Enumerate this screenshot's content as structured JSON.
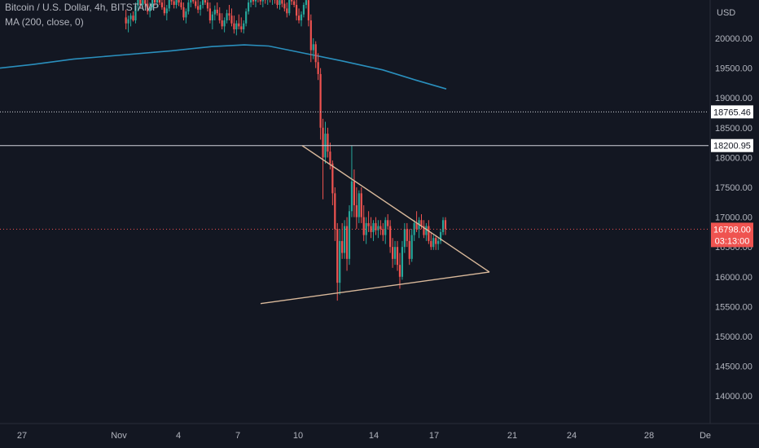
{
  "legend": {
    "symbol": "Bitcoin / U.S. Dollar, 4h, BITSTAMP",
    "indicator": "MA (200, close, 0)"
  },
  "currency": "USD",
  "colors": {
    "background": "#131722",
    "grid": "#1f2330",
    "up": "#26a69a",
    "down": "#ef5350",
    "ma": "#2a8fbd",
    "trendline": "#d9b99b",
    "level_line": "#d1d4dc"
  },
  "chart_data": {
    "type": "candlestick",
    "title": "Bitcoin / U.S. Dollar, 4h, BITSTAMP",
    "ylim": [
      13700,
      20700
    ],
    "y_ticks": [
      "20000.00",
      "19500.00",
      "19000.00",
      "18500.00",
      "18000.00",
      "17500.00",
      "17000.00",
      "16500.00",
      "16000.00",
      "15500.00",
      "15000.00",
      "14500.00",
      "14000.00"
    ],
    "x_ticks": [
      "27",
      "Nov",
      "4",
      "7",
      "10",
      "14",
      "17",
      "21",
      "24",
      "28",
      "De"
    ],
    "grid": false,
    "price_labels": {
      "dotted_level": "18765.46",
      "solid_level": "18200.95",
      "last_price": "16798.00",
      "countdown": "03:13:00"
    },
    "levels": {
      "dotted": 18765.46,
      "solid": 18200.95,
      "last": 16798.0
    },
    "moving_average": {
      "name": "MA (200, close, 0)",
      "points": [
        [
          0,
          19500
        ],
        [
          40,
          19560
        ],
        [
          90,
          19650
        ],
        [
          150,
          19720
        ],
        [
          210,
          19790
        ],
        [
          260,
          19860
        ],
        [
          300,
          19890
        ],
        [
          330,
          19870
        ],
        [
          370,
          19760
        ],
        [
          420,
          19620
        ],
        [
          470,
          19470
        ],
        [
          510,
          19300
        ],
        [
          548,
          19150
        ]
      ]
    },
    "triangle": {
      "upper": [
        [
          371,
          18200
        ],
        [
          601,
          16080
        ]
      ],
      "lower": [
        [
          320,
          15550
        ],
        [
          601,
          16080
        ]
      ]
    },
    "candles": [
      {
        "o": 20350,
        "h": 20480,
        "l": 20150,
        "c": 20250
      },
      {
        "o": 20250,
        "h": 20380,
        "l": 20100,
        "c": 20320
      },
      {
        "o": 20320,
        "h": 20420,
        "l": 20200,
        "c": 20380
      },
      {
        "o": 20380,
        "h": 20450,
        "l": 20280,
        "c": 20300
      },
      {
        "o": 20300,
        "h": 20600,
        "l": 20250,
        "c": 20550
      },
      {
        "o": 20550,
        "h": 20700,
        "l": 20450,
        "c": 20650
      },
      {
        "o": 20650,
        "h": 20700,
        "l": 20500,
        "c": 20560
      },
      {
        "o": 20560,
        "h": 20700,
        "l": 20480,
        "c": 20640
      },
      {
        "o": 20640,
        "h": 20700,
        "l": 20520,
        "c": 20580
      },
      {
        "o": 20580,
        "h": 20700,
        "l": 20400,
        "c": 20450
      },
      {
        "o": 20450,
        "h": 20600,
        "l": 20350,
        "c": 20520
      },
      {
        "o": 20520,
        "h": 20700,
        "l": 20480,
        "c": 20660
      },
      {
        "o": 20660,
        "h": 20700,
        "l": 20550,
        "c": 20600
      },
      {
        "o": 20600,
        "h": 20700,
        "l": 20520,
        "c": 20680
      },
      {
        "o": 20680,
        "h": 20700,
        "l": 20560,
        "c": 20600
      },
      {
        "o": 20600,
        "h": 20700,
        "l": 20480,
        "c": 20520
      },
      {
        "o": 20520,
        "h": 20650,
        "l": 20380,
        "c": 20420
      },
      {
        "o": 20420,
        "h": 20560,
        "l": 20300,
        "c": 20500
      },
      {
        "o": 20500,
        "h": 20700,
        "l": 20450,
        "c": 20660
      },
      {
        "o": 20660,
        "h": 20700,
        "l": 20560,
        "c": 20620
      },
      {
        "o": 20620,
        "h": 20700,
        "l": 20500,
        "c": 20560
      },
      {
        "o": 20560,
        "h": 20700,
        "l": 20500,
        "c": 20650
      },
      {
        "o": 20650,
        "h": 20700,
        "l": 20540,
        "c": 20600
      },
      {
        "o": 20600,
        "h": 20700,
        "l": 20480,
        "c": 20520
      },
      {
        "o": 20520,
        "h": 20600,
        "l": 20300,
        "c": 20350
      },
      {
        "o": 20350,
        "h": 20500,
        "l": 20250,
        "c": 20450
      },
      {
        "o": 20450,
        "h": 20650,
        "l": 20400,
        "c": 20600
      },
      {
        "o": 20600,
        "h": 20700,
        "l": 20520,
        "c": 20660
      },
      {
        "o": 20660,
        "h": 20700,
        "l": 20580,
        "c": 20620
      },
      {
        "o": 20620,
        "h": 20700,
        "l": 20500,
        "c": 20540
      },
      {
        "o": 20540,
        "h": 20650,
        "l": 20420,
        "c": 20480
      },
      {
        "o": 20480,
        "h": 20620,
        "l": 20380,
        "c": 20560
      },
      {
        "o": 20560,
        "h": 20700,
        "l": 20500,
        "c": 20640
      },
      {
        "o": 20640,
        "h": 20700,
        "l": 20560,
        "c": 20600
      },
      {
        "o": 20600,
        "h": 20700,
        "l": 20450,
        "c": 20500
      },
      {
        "o": 20500,
        "h": 20600,
        "l": 20250,
        "c": 20300
      },
      {
        "o": 20300,
        "h": 20450,
        "l": 20150,
        "c": 20400
      },
      {
        "o": 20400,
        "h": 20550,
        "l": 20300,
        "c": 20480
      },
      {
        "o": 20480,
        "h": 20600,
        "l": 20380,
        "c": 20420
      },
      {
        "o": 20420,
        "h": 20520,
        "l": 20250,
        "c": 20300
      },
      {
        "o": 20300,
        "h": 20420,
        "l": 20150,
        "c": 20200
      },
      {
        "o": 20200,
        "h": 20350,
        "l": 20100,
        "c": 20300
      },
      {
        "o": 20300,
        "h": 20480,
        "l": 20250,
        "c": 20420
      },
      {
        "o": 20420,
        "h": 20560,
        "l": 20300,
        "c": 20380
      },
      {
        "o": 20380,
        "h": 20500,
        "l": 20200,
        "c": 20250
      },
      {
        "o": 20250,
        "h": 20380,
        "l": 20080,
        "c": 20150
      },
      {
        "o": 20150,
        "h": 20300,
        "l": 20050,
        "c": 20250
      },
      {
        "o": 20250,
        "h": 20400,
        "l": 20150,
        "c": 20200
      },
      {
        "o": 20200,
        "h": 20350,
        "l": 20100,
        "c": 20150
      },
      {
        "o": 20150,
        "h": 20300,
        "l": 20080,
        "c": 20250
      },
      {
        "o": 20250,
        "h": 20500,
        "l": 20200,
        "c": 20450
      },
      {
        "o": 20450,
        "h": 20650,
        "l": 20400,
        "c": 20600
      },
      {
        "o": 20600,
        "h": 20700,
        "l": 20520,
        "c": 20660
      },
      {
        "o": 20660,
        "h": 20700,
        "l": 20560,
        "c": 20620
      },
      {
        "o": 20620,
        "h": 20700,
        "l": 20520,
        "c": 20680
      },
      {
        "o": 20680,
        "h": 20700,
        "l": 20600,
        "c": 20650
      },
      {
        "o": 20650,
        "h": 20700,
        "l": 20560,
        "c": 20620
      },
      {
        "o": 20620,
        "h": 20700,
        "l": 20520,
        "c": 20660
      },
      {
        "o": 20660,
        "h": 20700,
        "l": 20580,
        "c": 20640
      },
      {
        "o": 20640,
        "h": 20700,
        "l": 20560,
        "c": 20680
      },
      {
        "o": 20680,
        "h": 20700,
        "l": 20600,
        "c": 20650
      },
      {
        "o": 20650,
        "h": 20700,
        "l": 20560,
        "c": 20680
      },
      {
        "o": 20680,
        "h": 20700,
        "l": 20580,
        "c": 20640
      },
      {
        "o": 20640,
        "h": 20700,
        "l": 20500,
        "c": 20560
      },
      {
        "o": 20560,
        "h": 20700,
        "l": 20480,
        "c": 20640
      },
      {
        "o": 20640,
        "h": 20700,
        "l": 20520,
        "c": 20580
      },
      {
        "o": 20580,
        "h": 20700,
        "l": 20450,
        "c": 20500
      },
      {
        "o": 20500,
        "h": 20600,
        "l": 20350,
        "c": 20420
      },
      {
        "o": 20420,
        "h": 20700,
        "l": 20380,
        "c": 20660
      },
      {
        "o": 20660,
        "h": 20700,
        "l": 20560,
        "c": 20620
      },
      {
        "o": 20620,
        "h": 20700,
        "l": 20520,
        "c": 20560
      },
      {
        "o": 20560,
        "h": 20700,
        "l": 20300,
        "c": 20380
      },
      {
        "o": 20380,
        "h": 20500,
        "l": 20250,
        "c": 20300
      },
      {
        "o": 20300,
        "h": 20450,
        "l": 20200,
        "c": 20400
      },
      {
        "o": 20400,
        "h": 20600,
        "l": 20350,
        "c": 20560
      },
      {
        "o": 20560,
        "h": 20700,
        "l": 20500,
        "c": 20640
      },
      {
        "o": 20640,
        "h": 20700,
        "l": 20200,
        "c": 20300
      },
      {
        "o": 20300,
        "h": 20400,
        "l": 19600,
        "c": 19800
      },
      {
        "o": 19800,
        "h": 20000,
        "l": 19650,
        "c": 19900
      },
      {
        "o": 19900,
        "h": 19950,
        "l": 19500,
        "c": 19600
      },
      {
        "o": 19600,
        "h": 19750,
        "l": 19300,
        "c": 19400
      },
      {
        "o": 19400,
        "h": 19500,
        "l": 18300,
        "c": 18500
      },
      {
        "o": 18500,
        "h": 18650,
        "l": 17300,
        "c": 18000
      },
      {
        "o": 18000,
        "h": 18600,
        "l": 17900,
        "c": 18400
      },
      {
        "o": 18400,
        "h": 18500,
        "l": 18000,
        "c": 18100
      },
      {
        "o": 18100,
        "h": 18250,
        "l": 17800,
        "c": 17900
      },
      {
        "o": 17900,
        "h": 17950,
        "l": 17200,
        "c": 17400
      },
      {
        "o": 17400,
        "h": 17500,
        "l": 16600,
        "c": 16800
      },
      {
        "o": 16800,
        "h": 16900,
        "l": 15600,
        "c": 15900
      },
      {
        "o": 15900,
        "h": 16800,
        "l": 15700,
        "c": 16600
      },
      {
        "o": 16600,
        "h": 16900,
        "l": 16300,
        "c": 16400
      },
      {
        "o": 16400,
        "h": 16950,
        "l": 16300,
        "c": 16850
      },
      {
        "o": 16850,
        "h": 17000,
        "l": 16100,
        "c": 16300
      },
      {
        "o": 16300,
        "h": 17200,
        "l": 16200,
        "c": 17100
      },
      {
        "o": 17100,
        "h": 18200,
        "l": 17000,
        "c": 17600
      },
      {
        "o": 17600,
        "h": 17800,
        "l": 17000,
        "c": 17200
      },
      {
        "o": 17200,
        "h": 17500,
        "l": 16800,
        "c": 17000
      },
      {
        "o": 17000,
        "h": 17450,
        "l": 16900,
        "c": 17400
      },
      {
        "o": 17400,
        "h": 17500,
        "l": 16900,
        "c": 17000
      },
      {
        "o": 17000,
        "h": 17200,
        "l": 16600,
        "c": 16700
      },
      {
        "o": 16700,
        "h": 17000,
        "l": 16550,
        "c": 16900
      },
      {
        "o": 16900,
        "h": 17100,
        "l": 16750,
        "c": 16850
      },
      {
        "o": 16850,
        "h": 17000,
        "l": 16650,
        "c": 16750
      },
      {
        "o": 16750,
        "h": 16950,
        "l": 16600,
        "c": 16900
      },
      {
        "o": 16900,
        "h": 17000,
        "l": 16700,
        "c": 16780
      },
      {
        "o": 16780,
        "h": 16950,
        "l": 16650,
        "c": 16850
      },
      {
        "o": 16850,
        "h": 16950,
        "l": 16700,
        "c": 16800
      },
      {
        "o": 16800,
        "h": 16900,
        "l": 16600,
        "c": 16700
      },
      {
        "o": 16700,
        "h": 17000,
        "l": 16550,
        "c": 16950
      },
      {
        "o": 16950,
        "h": 17050,
        "l": 16800,
        "c": 16850
      },
      {
        "o": 16850,
        "h": 16950,
        "l": 16400,
        "c": 16500
      },
      {
        "o": 16500,
        "h": 16650,
        "l": 16150,
        "c": 16300
      },
      {
        "o": 16300,
        "h": 16600,
        "l": 16200,
        "c": 16500
      },
      {
        "o": 16500,
        "h": 16600,
        "l": 16100,
        "c": 16200
      },
      {
        "o": 16200,
        "h": 16400,
        "l": 15800,
        "c": 16000
      },
      {
        "o": 16000,
        "h": 16600,
        "l": 15950,
        "c": 16500
      },
      {
        "o": 16500,
        "h": 16900,
        "l": 16400,
        "c": 16800
      },
      {
        "o": 16800,
        "h": 16900,
        "l": 16500,
        "c": 16600
      },
      {
        "o": 16600,
        "h": 16800,
        "l": 16200,
        "c": 16300
      },
      {
        "o": 16300,
        "h": 16800,
        "l": 16250,
        "c": 16700
      },
      {
        "o": 16700,
        "h": 16950,
        "l": 16600,
        "c": 16900
      },
      {
        "o": 16900,
        "h": 17100,
        "l": 16750,
        "c": 16800
      },
      {
        "o": 16800,
        "h": 17000,
        "l": 16650,
        "c": 16950
      },
      {
        "o": 16950,
        "h": 17050,
        "l": 16800,
        "c": 16850
      },
      {
        "o": 16850,
        "h": 16950,
        "l": 16650,
        "c": 16700
      },
      {
        "o": 16700,
        "h": 16900,
        "l": 16600,
        "c": 16850
      },
      {
        "o": 16850,
        "h": 16950,
        "l": 16550,
        "c": 16600
      },
      {
        "o": 16600,
        "h": 16750,
        "l": 16450,
        "c": 16500
      },
      {
        "o": 16500,
        "h": 16700,
        "l": 16450,
        "c": 16650
      },
      {
        "o": 16650,
        "h": 16700,
        "l": 16450,
        "c": 16550
      },
      {
        "o": 16550,
        "h": 16650,
        "l": 16450,
        "c": 16600
      },
      {
        "o": 16600,
        "h": 16800,
        "l": 16550,
        "c": 16750
      },
      {
        "o": 16750,
        "h": 17000,
        "l": 16700,
        "c": 16950
      },
      {
        "o": 16950,
        "h": 17000,
        "l": 16700,
        "c": 16798
      }
    ]
  }
}
